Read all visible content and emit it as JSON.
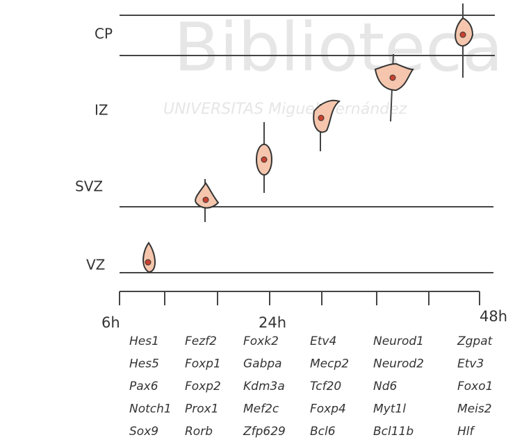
{
  "watermark": {
    "title": "Biblioteca",
    "subtitle": "UNIVERSITAS Miguel Hernández"
  },
  "layers": [
    "CP",
    "IZ",
    "SVZ",
    "VZ"
  ],
  "time_labels": [
    "6h",
    "24h",
    "48h"
  ],
  "gene_columns": [
    [
      "Hes1",
      "Hes5",
      "Pax6",
      "Notch1",
      "Sox9"
    ],
    [
      "Fezf2",
      "Foxp1",
      "Foxp2",
      "Prox1",
      "Rorb"
    ],
    [
      "Foxk2",
      "Gabpa",
      "Kdm3a",
      "Mef2c",
      "Zfp629"
    ],
    [
      "Etv4",
      "Mecp2",
      "Tcf20",
      "Foxp4",
      "Bcl6"
    ],
    [
      "Neurod1",
      "Neurod2",
      "Nd6",
      "Myt1l",
      "Bcl11b"
    ],
    [
      "Zgpat",
      "Etv3",
      "Foxo1",
      "Meis2",
      "Hlf"
    ]
  ]
}
